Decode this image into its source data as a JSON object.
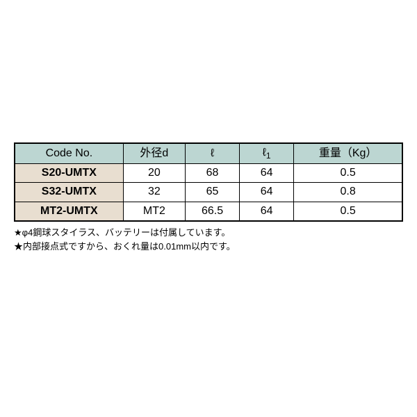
{
  "table": {
    "header_bg": "#bcd6d2",
    "col0_bg": "#e8ded0",
    "columns": [
      "Code No.",
      "外径d",
      "ℓ",
      "ℓ1",
      "重量（Kg）"
    ],
    "col_widths": [
      "28%",
      "16%",
      "14%",
      "14%",
      "28%"
    ],
    "rows": [
      [
        "S20-UMTX",
        "20",
        "68",
        "64",
        "0.5"
      ],
      [
        "S32-UMTX",
        "32",
        "65",
        "64",
        "0.8"
      ],
      [
        "MT2-UMTX",
        "MT2",
        "66.5",
        "64",
        "0.5"
      ]
    ]
  },
  "notes": [
    "φ4鋼球スタイラス、バッテリーは付属しています。",
    "内部接点式ですから、おくれ量は0.01mm以内です。"
  ]
}
